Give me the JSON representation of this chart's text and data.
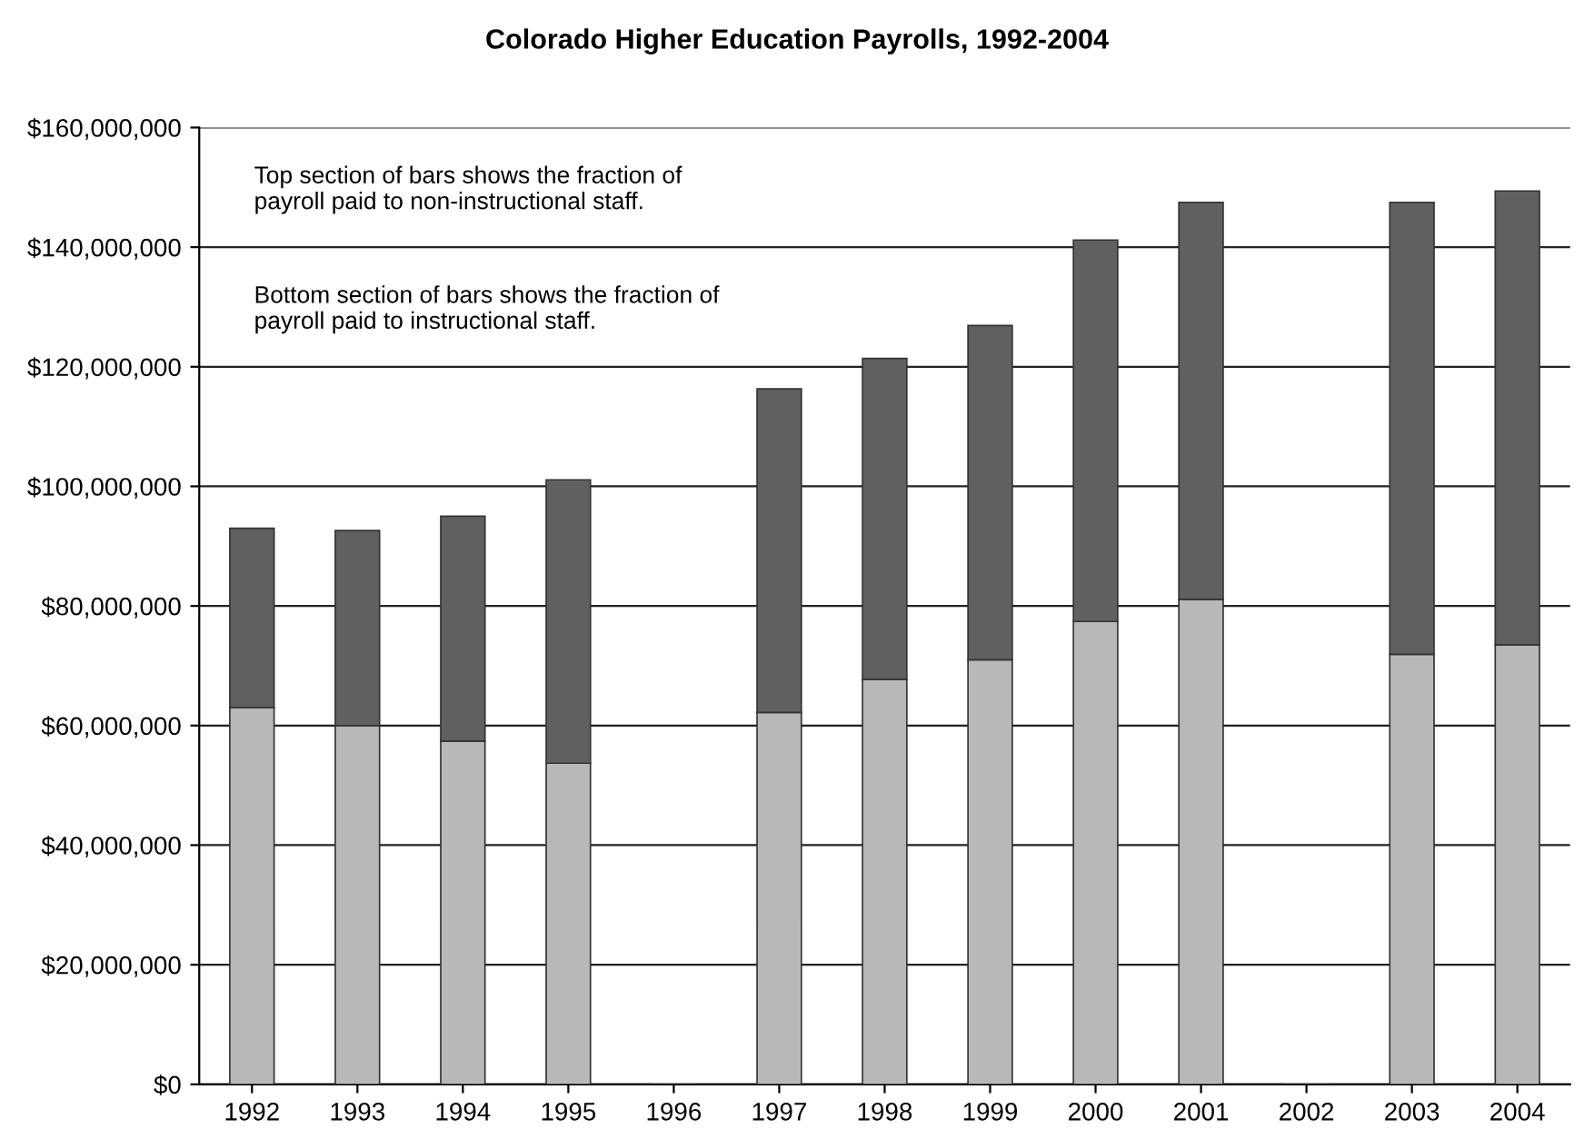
{
  "chart_data": {
    "type": "bar",
    "title": "Colorado Higher Education Payrolls, 1992-2004",
    "categories": [
      "1992",
      "1993",
      "1994",
      "1995",
      "1996",
      "1997",
      "1998",
      "1999",
      "2000",
      "2001",
      "2002",
      "2003",
      "2004"
    ],
    "stacked": true,
    "series": [
      {
        "color": "#b8b8b8",
        "values": [
          63000000,
          60000000,
          57400000,
          53700000,
          null,
          62200000,
          67700000,
          71000000,
          77400000,
          81100000,
          null,
          71900000,
          73500000
        ]
      },
      {
        "color": "#606060",
        "values": [
          30000000,
          32600000,
          37600000,
          47400000,
          null,
          54100000,
          53700000,
          55900000,
          63800000,
          66400000,
          null,
          75600000,
          75900000
        ]
      }
    ],
    "ylim": [
      0,
      160000000
    ],
    "yticks": [
      {
        "value": 0,
        "label": "$0"
      },
      {
        "value": 20000000,
        "label": "$20,000,000"
      },
      {
        "value": 40000000,
        "label": "$40,000,000"
      },
      {
        "value": 60000000,
        "label": "$60,000,000"
      },
      {
        "value": 80000000,
        "label": "$80,000,000"
      },
      {
        "value": 100000000,
        "label": "$100,000,000"
      },
      {
        "value": 120000000,
        "label": "$120,000,000"
      },
      {
        "value": 140000000,
        "label": "$140,000,000"
      },
      {
        "value": 160000000,
        "label": "$160,000,000"
      }
    ],
    "grid": "y",
    "annotations": [
      "Top section of bars shows the fraction of\npayroll paid to non-instructional staff.",
      "Bottom section of bars shows the fraction of\npayroll paid to instructional staff."
    ]
  }
}
